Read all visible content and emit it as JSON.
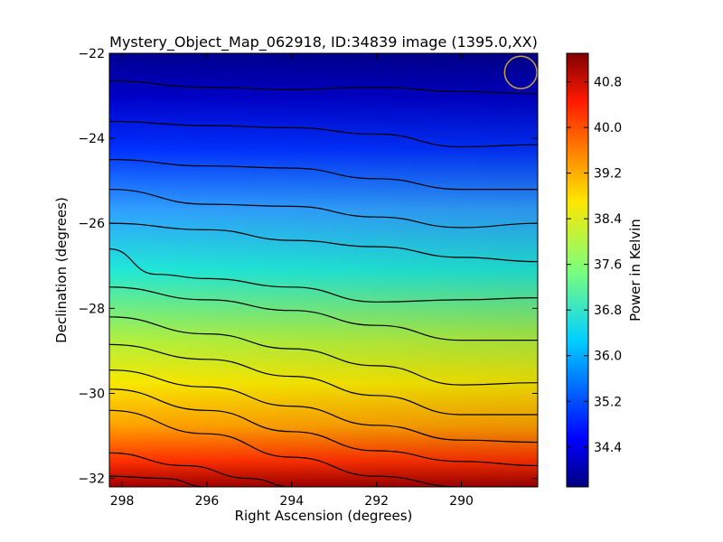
{
  "chart_data": {
    "type": "heatmap",
    "title": "Mystery_Object_Map_062918, ID:34839 image (1395.0,XX)",
    "xlabel": "Right Ascension (degrees)",
    "ylabel": "Declination (degrees)",
    "colorbar_label": "Power in Kelvin",
    "colormap": "jet",
    "xlim": [
      298.3,
      288.2
    ],
    "ylim": [
      -32.2,
      -22.0
    ],
    "clim": [
      33.7,
      41.3
    ],
    "x_ticks": [
      298,
      296,
      294,
      292,
      290
    ],
    "x_tick_labels": [
      "298",
      "296",
      "294",
      "292",
      "290"
    ],
    "y_ticks": [
      -22,
      -24,
      -26,
      -28,
      -30,
      -32
    ],
    "y_tick_labels": [
      "−22",
      "−24",
      "−26",
      "−28",
      "−30",
      "−32"
    ],
    "colorbar_ticks": [
      34.4,
      35.2,
      36.0,
      36.8,
      37.6,
      38.4,
      39.2,
      40.0,
      40.8
    ],
    "colorbar_tick_labels": [
      "34.4",
      "35.2",
      "36.0",
      "36.8",
      "37.6",
      "38.4",
      "39.2",
      "40.0",
      "40.8"
    ],
    "temperature_profile_at_ra_294": {
      "dec": [
        -22.0,
        -23.0,
        -24.0,
        -25.0,
        -26.0,
        -27.0,
        -28.0,
        -29.0,
        -30.0,
        -31.0,
        -32.2
      ],
      "power_K": [
        33.9,
        34.0,
        34.2,
        34.6,
        35.3,
        36.0,
        36.9,
        37.6,
        38.6,
        39.6,
        40.4
      ]
    },
    "contour_lines_dec_at_ra": [
      {
        "ra": [
          298.3,
          296,
          294,
          292,
          290,
          288.2
        ],
        "dec": [
          -22.65,
          -22.8,
          -22.85,
          -22.8,
          -22.9,
          -22.95
        ]
      },
      {
        "ra": [
          298.3,
          296,
          294,
          292,
          290,
          288.2
        ],
        "dec": [
          -23.6,
          -23.7,
          -23.75,
          -23.9,
          -24.2,
          -24.15
        ]
      },
      {
        "ra": [
          298.3,
          296,
          294,
          292,
          290,
          288.2
        ],
        "dec": [
          -24.5,
          -24.65,
          -24.7,
          -24.95,
          -25.2,
          -25.2
        ]
      },
      {
        "ra": [
          298.3,
          296,
          294,
          292,
          290,
          288.2
        ],
        "dec": [
          -25.2,
          -25.55,
          -25.6,
          -25.85,
          -26.1,
          -26.0
        ]
      },
      {
        "ra": [
          298.3,
          296,
          294,
          292,
          290,
          288.2
        ],
        "dec": [
          -26.0,
          -26.15,
          -26.4,
          -26.55,
          -26.8,
          -26.9
        ]
      },
      {
        "ra": [
          298.3,
          297.2,
          296,
          294,
          292,
          290,
          288.2
        ],
        "dec": [
          -26.6,
          -27.2,
          -27.3,
          -27.5,
          -27.85,
          -27.8,
          -27.75
        ]
      },
      {
        "ra": [
          298.3,
          296,
          294,
          292,
          290,
          288.2
        ],
        "dec": [
          -27.5,
          -27.8,
          -28.05,
          -28.4,
          -28.75,
          -28.75
        ]
      },
      {
        "ra": [
          298.3,
          296,
          294,
          292,
          290,
          288.2
        ],
        "dec": [
          -28.2,
          -28.6,
          -28.95,
          -29.35,
          -29.8,
          -29.75
        ]
      },
      {
        "ra": [
          298.3,
          296,
          294,
          292,
          290,
          288.2
        ],
        "dec": [
          -28.85,
          -29.2,
          -29.6,
          -30.05,
          -30.5,
          -30.5
        ]
      },
      {
        "ra": [
          298.3,
          296,
          294,
          292,
          290,
          288.2
        ],
        "dec": [
          -29.45,
          -29.85,
          -30.3,
          -30.75,
          -31.1,
          -31.15
        ]
      },
      {
        "ra": [
          298.3,
          296,
          294,
          292,
          290,
          288.2
        ],
        "dec": [
          -29.9,
          -30.4,
          -30.9,
          -31.35,
          -31.6,
          -31.7
        ]
      },
      {
        "ra": [
          298.3,
          296,
          294,
          292,
          290,
          288.2
        ],
        "dec": [
          -30.4,
          -30.95,
          -31.5,
          -31.95,
          -32.2,
          -32.2
        ]
      },
      {
        "ra": [
          298.3,
          296.5,
          295,
          294
        ],
        "dec": [
          -31.4,
          -31.7,
          -32.0,
          -32.2
        ]
      },
      {
        "ra": [
          298.3,
          297,
          296
        ],
        "dec": [
          -31.95,
          -32.0,
          -32.2
        ]
      }
    ],
    "marker_circle": {
      "ra": 288.6,
      "dec": -22.45,
      "radius_deg": 0.38,
      "color": "#c8a040"
    },
    "grid": false
  }
}
